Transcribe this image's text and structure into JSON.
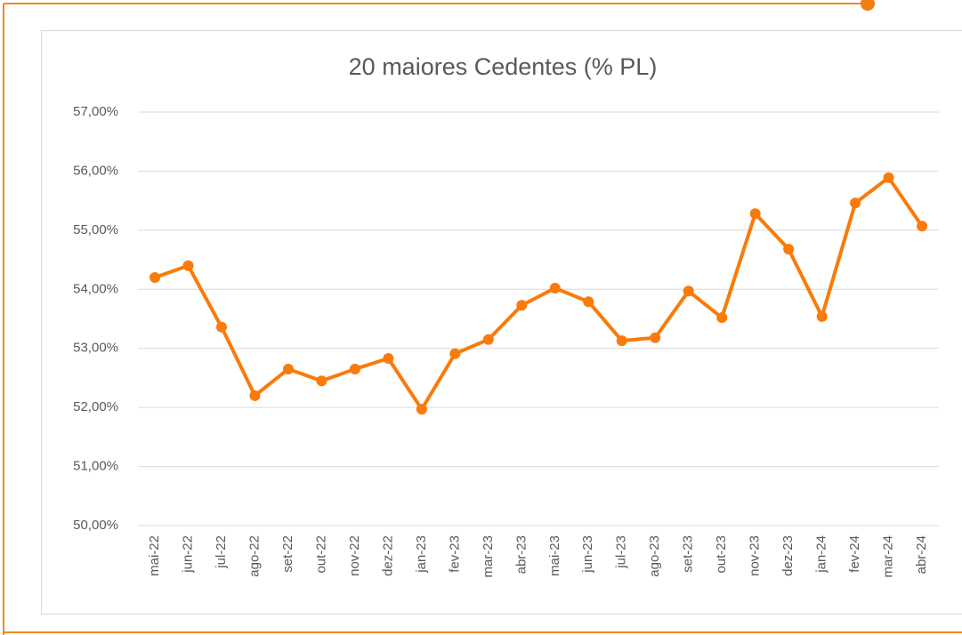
{
  "chart_data": {
    "type": "line",
    "title": "20 maiores Cedentes (% PL)",
    "categories": [
      "mai-22",
      "jun-22",
      "jul-22",
      "ago-22",
      "set-22",
      "out-22",
      "nov-22",
      "dez-22",
      "jan-23",
      "fev-23",
      "mar-23",
      "abr-23",
      "mai-23",
      "jun-23",
      "jul-23",
      "ago-23",
      "set-23",
      "out-23",
      "nov-23",
      "dez-23",
      "jan-24",
      "fev-24",
      "mar-24",
      "abr-24"
    ],
    "series": [
      {
        "name": "20 maiores Cedentes",
        "color": "#fa7a0a",
        "values": [
          54.2,
          54.4,
          53.36,
          52.2,
          52.65,
          52.45,
          52.65,
          52.83,
          51.97,
          52.91,
          53.15,
          53.73,
          54.02,
          53.79,
          53.13,
          53.18,
          53.97,
          53.52,
          55.28,
          54.68,
          53.54,
          55.46,
          55.89,
          55.07
        ]
      }
    ],
    "ylim": [
      50,
      57
    ],
    "yticks": [
      {
        "value": 50,
        "label": "50,00%"
      },
      {
        "value": 51,
        "label": "51,00%"
      },
      {
        "value": 52,
        "label": "52,00%"
      },
      {
        "value": 53,
        "label": "53,00%"
      },
      {
        "value": 54,
        "label": "54,00%"
      },
      {
        "value": 55,
        "label": "55,00%"
      },
      {
        "value": 56,
        "label": "56,00%"
      },
      {
        "value": 57,
        "label": "57,00%"
      }
    ],
    "grid": true
  }
}
